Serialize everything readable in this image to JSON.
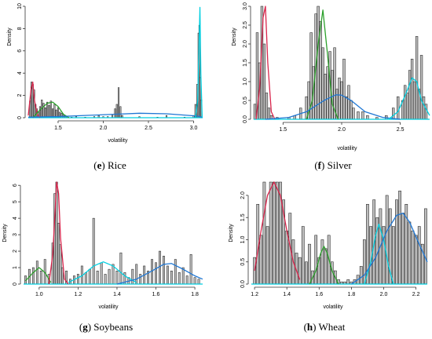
{
  "chart_data": [
    {
      "type": "bar",
      "caption_letter": "e",
      "caption_name": "Rice",
      "xlabel": "volatility",
      "ylabel": "Density",
      "xlim": [
        1.17,
        3.1
      ],
      "ylim": [
        0,
        10
      ],
      "xticks": [
        "1.5",
        "2.0",
        "2.5",
        "3.0"
      ],
      "xtick_values": [
        1.5,
        2.0,
        2.5,
        3.0
      ],
      "yticks": [
        "0",
        "2",
        "4",
        "6",
        "8",
        "10"
      ],
      "ytick_values": [
        0,
        2,
        4,
        6,
        8,
        10
      ],
      "hist_x": [
        1.19,
        1.205,
        1.22,
        1.235,
        1.25,
        1.265,
        1.28,
        1.3,
        1.32,
        1.34,
        1.36,
        1.38,
        1.4,
        1.42,
        1.44,
        1.46,
        1.48,
        1.5,
        1.52,
        1.54,
        1.56,
        1.58,
        1.6,
        1.65,
        1.7,
        1.8,
        1.9,
        1.95,
        2.0,
        2.05,
        2.1,
        2.13,
        2.15,
        2.17,
        2.19,
        2.21,
        2.4,
        2.6,
        2.7,
        2.9,
        3.0,
        3.02,
        3.04,
        3.055,
        3.065,
        3.075,
        3.085
      ],
      "hist_y": [
        1.5,
        3.2,
        3.0,
        2.5,
        1.2,
        0.8,
        0.5,
        1.0,
        1.6,
        1.3,
        0.9,
        1.4,
        1.1,
        1.5,
        0.8,
        1.2,
        0.7,
        0.9,
        0.5,
        0.4,
        0.3,
        0.2,
        0.1,
        0.05,
        0.1,
        0.05,
        0.1,
        0.2,
        0.1,
        0.1,
        0.3,
        0.8,
        1.2,
        2.7,
        1.0,
        0.2,
        0.1,
        0.05,
        0.2,
        0.05,
        0.2,
        1.2,
        3.0,
        7.6,
        8.3,
        3.6,
        1.6
      ],
      "curves": [
        {
          "color": "#d9254c",
          "x": [
            1.17,
            1.2,
            1.22,
            1.24,
            1.27,
            1.3
          ],
          "y": [
            0.2,
            2.5,
            3.2,
            1.5,
            0.3,
            0.0
          ]
        },
        {
          "color": "#2ca02c",
          "x": [
            1.22,
            1.3,
            1.38,
            1.44,
            1.5,
            1.56,
            1.62
          ],
          "y": [
            0.0,
            0.7,
            1.3,
            1.4,
            1.0,
            0.3,
            0.0
          ]
        },
        {
          "color": "#1f77d4",
          "x": [
            1.17,
            1.5,
            1.8,
            2.1,
            2.4,
            2.7,
            2.95,
            3.04,
            3.07,
            3.09,
            3.1
          ],
          "y": [
            0.05,
            0.1,
            0.2,
            0.3,
            0.4,
            0.35,
            0.2,
            0.15,
            0.1,
            0.05,
            0.0
          ]
        },
        {
          "color": "#00cfe0",
          "x": [
            3.02,
            3.045,
            3.06,
            3.07,
            3.08,
            3.095
          ],
          "y": [
            0.0,
            1.5,
            6.5,
            9.9,
            4.0,
            0.0
          ]
        }
      ]
    },
    {
      "type": "bar",
      "caption_letter": "f",
      "caption_name": "Silver",
      "xlabel": "volatility",
      "ylabel": "Density",
      "xlim": [
        1.25,
        2.75
      ],
      "ylim": [
        0,
        3.0
      ],
      "xticks": [
        "1.5",
        "2.0",
        "2.5"
      ],
      "xtick_values": [
        1.5,
        2.0,
        2.5
      ],
      "yticks": [
        "0.0",
        "0.5",
        "1.0",
        "1.5",
        "2.0",
        "2.5",
        "3.0"
      ],
      "ytick_values": [
        0,
        0.5,
        1.0,
        1.5,
        2.0,
        2.5,
        3.0
      ],
      "hist_x": [
        1.26,
        1.28,
        1.3,
        1.32,
        1.34,
        1.36,
        1.38,
        1.4,
        1.45,
        1.55,
        1.6,
        1.65,
        1.7,
        1.72,
        1.74,
        1.76,
        1.78,
        1.8,
        1.82,
        1.84,
        1.86,
        1.88,
        1.9,
        1.92,
        1.94,
        1.96,
        1.98,
        2.0,
        2.02,
        2.04,
        2.06,
        2.08,
        2.1,
        2.14,
        2.18,
        2.22,
        2.3,
        2.38,
        2.44,
        2.48,
        2.52,
        2.54,
        2.56,
        2.58,
        2.6,
        2.62,
        2.64,
        2.66,
        2.68,
        2.7,
        2.72
      ],
      "hist_y": [
        0.4,
        2.3,
        1.5,
        3.0,
        2.0,
        0.7,
        0.3,
        0.1,
        0.05,
        0.05,
        0.1,
        0.3,
        0.6,
        1.0,
        2.3,
        1.4,
        2.8,
        3.0,
        2.6,
        1.9,
        1.2,
        1.4,
        1.8,
        1.3,
        1.9,
        0.8,
        1.1,
        1.0,
        1.6,
        0.6,
        0.9,
        0.5,
        0.3,
        0.2,
        0.2,
        0.1,
        0.05,
        0.1,
        0.3,
        0.6,
        0.5,
        0.9,
        0.7,
        1.3,
        1.6,
        1.0,
        2.2,
        0.8,
        1.7,
        0.6,
        0.4
      ],
      "curves": [
        {
          "color": "#d9254c",
          "x": [
            1.27,
            1.3,
            1.33,
            1.35,
            1.37,
            1.4,
            1.43
          ],
          "y": [
            0.0,
            0.8,
            2.7,
            3.0,
            1.5,
            0.2,
            0.0
          ]
        },
        {
          "color": "#2ca02c",
          "x": [
            1.7,
            1.75,
            1.8,
            1.84,
            1.88,
            1.92,
            1.97
          ],
          "y": [
            0.0,
            0.5,
            2.0,
            2.9,
            1.7,
            0.4,
            0.0
          ]
        },
        {
          "color": "#1f77d4",
          "x": [
            1.35,
            1.55,
            1.7,
            1.85,
            1.95,
            2.0,
            2.08,
            2.2,
            2.35,
            2.5
          ],
          "y": [
            0.0,
            0.05,
            0.2,
            0.5,
            0.65,
            0.64,
            0.5,
            0.2,
            0.05,
            0.0
          ]
        },
        {
          "color": "#00cfe0",
          "x": [
            2.4,
            2.48,
            2.55,
            2.6,
            2.64,
            2.68,
            2.75
          ],
          "y": [
            0.0,
            0.2,
            0.7,
            1.1,
            1.0,
            0.5,
            0.1
          ]
        }
      ]
    },
    {
      "type": "bar",
      "caption_letter": "g",
      "caption_name": "Soybeans",
      "xlabel": "volatility",
      "ylabel": "Density",
      "xlim": [
        0.92,
        1.84
      ],
      "ylim": [
        0,
        6.2
      ],
      "xticks": [
        "1.0",
        "1.2",
        "1.4",
        "1.6",
        "1.8"
      ],
      "xtick_values": [
        1.0,
        1.2,
        1.4,
        1.6,
        1.8
      ],
      "yticks": [
        "0",
        "1",
        "2",
        "3",
        "4",
        "5",
        "6"
      ],
      "ytick_values": [
        0,
        1,
        2,
        3,
        4,
        5,
        6
      ],
      "hist_x": [
        0.93,
        0.95,
        0.97,
        0.99,
        1.01,
        1.03,
        1.05,
        1.07,
        1.08,
        1.09,
        1.1,
        1.11,
        1.12,
        1.14,
        1.16,
        1.18,
        1.2,
        1.22,
        1.24,
        1.26,
        1.28,
        1.3,
        1.32,
        1.34,
        1.36,
        1.38,
        1.4,
        1.42,
        1.44,
        1.46,
        1.48,
        1.5,
        1.52,
        1.54,
        1.56,
        1.58,
        1.6,
        1.62,
        1.64,
        1.66,
        1.68,
        1.7,
        1.72,
        1.74,
        1.76,
        1.78,
        1.8,
        1.82
      ],
      "hist_y": [
        0.5,
        0.9,
        1.0,
        1.4,
        0.8,
        1.5,
        0.6,
        2.5,
        5.5,
        6.3,
        3.7,
        2.4,
        1.0,
        0.8,
        0.3,
        0.5,
        0.6,
        1.1,
        0.7,
        0.9,
        4.0,
        0.8,
        1.3,
        0.6,
        0.9,
        1.2,
        0.8,
        1.9,
        0.7,
        0.4,
        0.9,
        1.2,
        0.6,
        1.1,
        0.8,
        1.5,
        1.3,
        2.0,
        1.7,
        1.1,
        0.8,
        1.5,
        0.7,
        1.0,
        0.5,
        1.8,
        0.4,
        0.3
      ],
      "curves": [
        {
          "color": "#2ca02c",
          "x": [
            0.93,
            0.97,
            1.0,
            1.03,
            1.06
          ],
          "y": [
            0.2,
            0.7,
            1.0,
            0.7,
            0.1
          ]
        },
        {
          "color": "#d9254c",
          "x": [
            1.05,
            1.07,
            1.09,
            1.1,
            1.11,
            1.13,
            1.15
          ],
          "y": [
            0.0,
            1.8,
            6.3,
            5.5,
            2.8,
            0.3,
            0.0
          ]
        },
        {
          "color": "#00cfe0",
          "x": [
            1.15,
            1.22,
            1.28,
            1.33,
            1.38,
            1.44,
            1.5
          ],
          "y": [
            0.1,
            0.5,
            1.1,
            1.35,
            1.1,
            0.5,
            0.1
          ]
        },
        {
          "color": "#1f77d4",
          "x": [
            1.4,
            1.5,
            1.58,
            1.64,
            1.68,
            1.74,
            1.8,
            1.84
          ],
          "y": [
            0.0,
            0.3,
            0.8,
            1.2,
            1.25,
            0.9,
            0.5,
            0.3
          ]
        }
      ]
    },
    {
      "type": "bar",
      "caption_letter": "h",
      "caption_name": "Wheat",
      "xlabel": "volatility",
      "ylabel": "Density",
      "xlim": [
        1.18,
        2.27
      ],
      "ylim": [
        0,
        2.3
      ],
      "xticks": [
        "1.2",
        "1.4",
        "1.6",
        "1.8",
        "2.0",
        "2.2"
      ],
      "xtick_values": [
        1.2,
        1.4,
        1.6,
        1.8,
        2.0,
        2.2
      ],
      "yticks": [
        "0.0",
        "0.5",
        "1.0",
        "1.5",
        "2.0"
      ],
      "ytick_values": [
        0,
        0.5,
        1.0,
        1.5,
        2.0
      ],
      "hist_x": [
        1.2,
        1.22,
        1.24,
        1.26,
        1.28,
        1.3,
        1.32,
        1.34,
        1.36,
        1.38,
        1.4,
        1.42,
        1.44,
        1.46,
        1.48,
        1.5,
        1.52,
        1.54,
        1.56,
        1.58,
        1.6,
        1.62,
        1.64,
        1.66,
        1.68,
        1.7,
        1.72,
        1.74,
        1.76,
        1.78,
        1.8,
        1.82,
        1.84,
        1.86,
        1.88,
        1.9,
        1.92,
        1.94,
        1.96,
        1.98,
        2.0,
        2.02,
        2.04,
        2.06,
        2.08,
        2.1,
        2.12,
        2.14,
        2.16,
        2.18,
        2.2,
        2.22,
        2.24,
        2.26
      ],
      "hist_y": [
        0.6,
        1.8,
        1.1,
        2.3,
        1.3,
        2.3,
        2.3,
        2.3,
        2.3,
        1.9,
        1.2,
        1.6,
        1.0,
        0.7,
        0.6,
        1.3,
        0.5,
        0.9,
        0.3,
        1.1,
        0.6,
        1.0,
        0.8,
        1.1,
        0.5,
        0.3,
        0.1,
        0.05,
        0.05,
        0.1,
        0.05,
        0.1,
        0.2,
        0.4,
        1.0,
        1.8,
        1.3,
        1.9,
        1.5,
        1.7,
        1.3,
        2.0,
        1.7,
        1.3,
        1.9,
        2.1,
        1.6,
        1.8,
        1.4,
        1.2,
        1.1,
        1.3,
        0.9,
        1.7
      ],
      "curves": [
        {
          "color": "#d9254c",
          "x": [
            1.2,
            1.24,
            1.28,
            1.32,
            1.36,
            1.4,
            1.44,
            1.48
          ],
          "y": [
            0.3,
            1.2,
            2.0,
            2.3,
            2.0,
            1.2,
            0.5,
            0.1
          ]
        },
        {
          "color": "#2ca02c",
          "x": [
            1.54,
            1.58,
            1.61,
            1.63,
            1.65,
            1.68,
            1.72
          ],
          "y": [
            0.0,
            0.3,
            0.7,
            0.85,
            0.7,
            0.3,
            0.0
          ]
        },
        {
          "color": "#00cfe0",
          "x": [
            1.88,
            1.92,
            1.95,
            1.97,
            2.0,
            2.03,
            2.06
          ],
          "y": [
            0.0,
            0.5,
            1.1,
            1.35,
            1.0,
            0.4,
            0.0
          ]
        },
        {
          "color": "#1f77d4",
          "x": [
            1.8,
            1.88,
            1.95,
            2.02,
            2.08,
            2.12,
            2.16,
            2.22,
            2.27
          ],
          "y": [
            0.0,
            0.2,
            0.6,
            1.2,
            1.55,
            1.6,
            1.4,
            0.9,
            0.5
          ]
        }
      ]
    }
  ]
}
